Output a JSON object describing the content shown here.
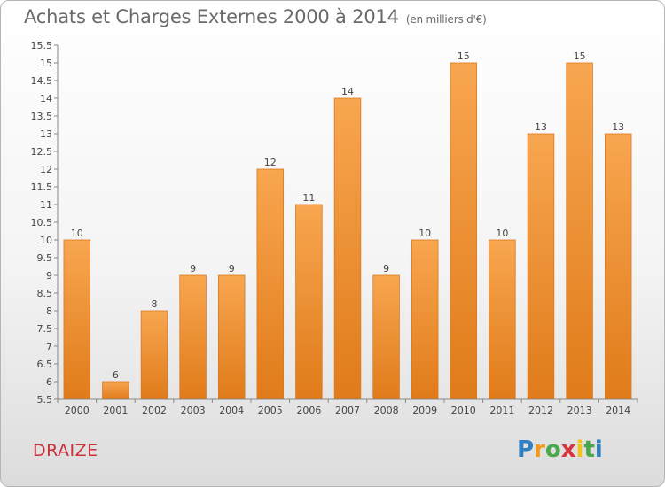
{
  "header": {
    "title": "Achats et Charges Externes 2000 à 2014",
    "subtitle": "(en milliers d'€)"
  },
  "footer": {
    "commune": "DRAIZE",
    "logo_text": "Proxiti"
  },
  "colors": {
    "bar_top": "#f8a650",
    "bar_bottom": "#e07b1a",
    "commune_text": "#c9303c"
  },
  "chart_data": {
    "type": "bar",
    "categories": [
      "2000",
      "2001",
      "2002",
      "2003",
      "2004",
      "2005",
      "2006",
      "2007",
      "2008",
      "2009",
      "2010",
      "2011",
      "2012",
      "2013",
      "2014"
    ],
    "values": [
      10,
      6,
      8,
      9,
      9,
      12,
      11,
      14,
      9,
      10,
      15,
      10,
      13,
      15,
      13
    ],
    "title": "Achats et Charges Externes 2000 à 2014",
    "subtitle": "(en milliers d'€)",
    "ylim": [
      5.5,
      15.5
    ],
    "yticks": [
      5.5,
      6,
      6.5,
      7,
      7.5,
      8,
      8.5,
      9,
      9.5,
      10,
      10.5,
      11,
      11.5,
      12,
      12.5,
      13,
      13.5,
      14,
      14.5,
      15,
      15.5
    ],
    "grid": false,
    "legend": "none"
  }
}
